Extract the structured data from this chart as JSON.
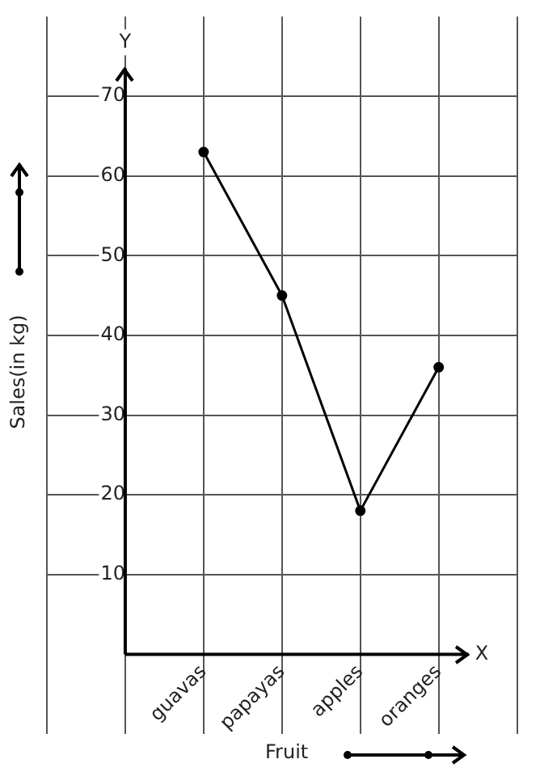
{
  "chart_data": {
    "type": "line",
    "xlabel": "Fruit",
    "ylabel": "Sales(in kg)",
    "categories": [
      "guavas",
      "papayas",
      "apples",
      "oranges"
    ],
    "series": [
      {
        "color": "#000000",
        "values": [
          63,
          45,
          18,
          36
        ]
      }
    ],
    "ylim": [
      -10,
      80
    ],
    "yticks": [
      10,
      20,
      30,
      40,
      50,
      60,
      70
    ],
    "annotations": [
      "Y",
      "X"
    ],
    "grid": true,
    "legend": false,
    "marker": "circle",
    "line_style": "solid"
  }
}
